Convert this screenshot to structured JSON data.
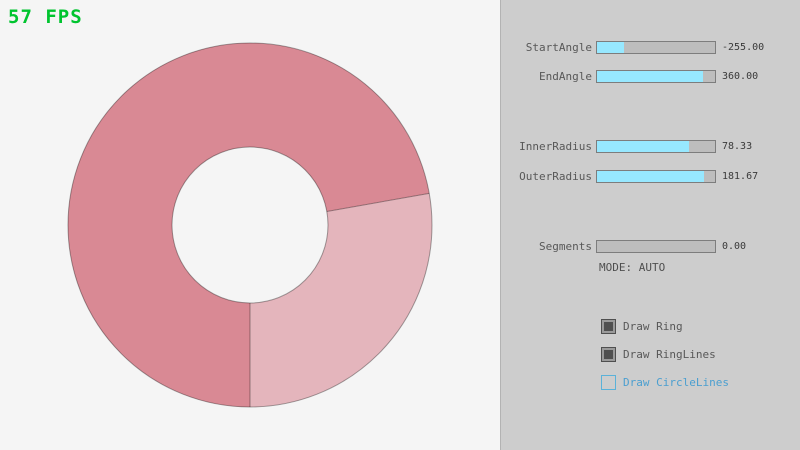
{
  "fps": "57 FPS",
  "colors": {
    "background": "#f5f5f5",
    "panel_bg": "#cdcdcd",
    "fps_green": "#00c42f",
    "slider_fill": "#97e8ff",
    "ring_overlap": "#d98994",
    "ring_single": "#e4b5bc",
    "focus_blue": "#5bb2d9"
  },
  "ring": {
    "start_angle": "-255.00",
    "end_angle": "360.00",
    "inner_radius": "78.33",
    "outer_radius": "181.67",
    "segments": "0.00",
    "mode": "AUTO"
  },
  "panel": {
    "sliders": [
      {
        "label": "StartAngle",
        "value": "-255.00",
        "fill_pct": 23
      },
      {
        "label": "EndAngle",
        "value": "360.00",
        "fill_pct": 90
      },
      {
        "label": "InnerRadius",
        "value": "78.33",
        "fill_pct": 78
      },
      {
        "label": "OuterRadius",
        "value": "181.67",
        "fill_pct": 91
      },
      {
        "label": "Segments",
        "value": "0.00",
        "fill_pct": 0
      }
    ],
    "mode_text": "MODE: AUTO",
    "checkboxes": [
      {
        "label": "Draw Ring",
        "checked": true,
        "focused": false
      },
      {
        "label": "Draw RingLines",
        "checked": true,
        "focused": false
      },
      {
        "label": "Draw CircleLines",
        "checked": false,
        "focused": true
      }
    ]
  }
}
